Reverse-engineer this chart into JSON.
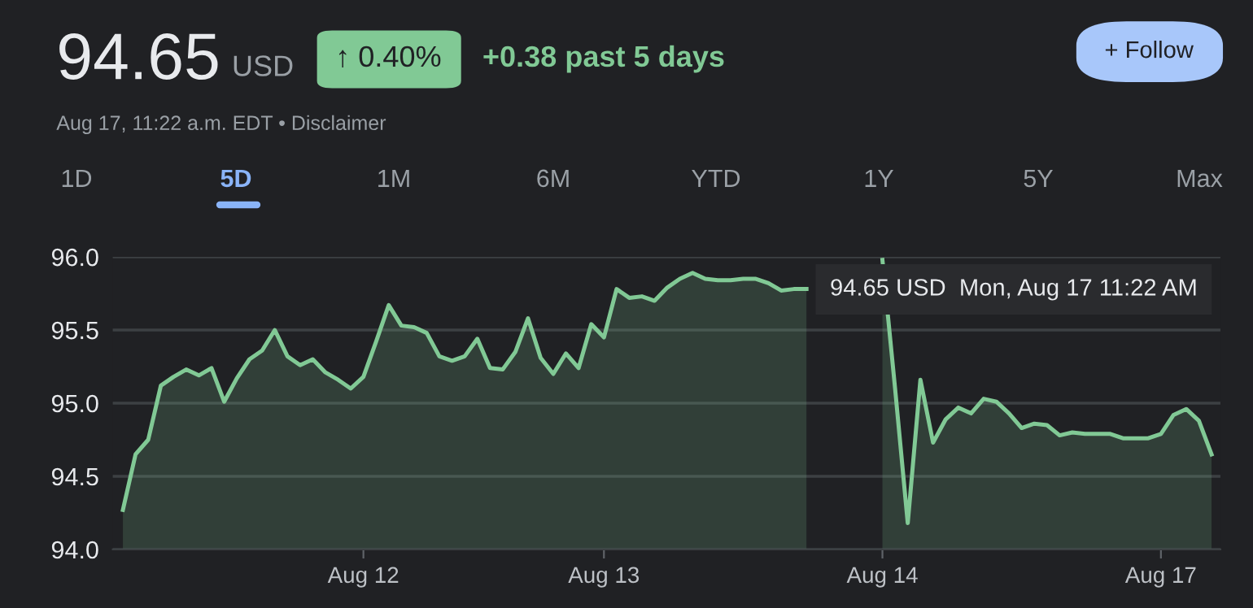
{
  "chart_data": {
    "type": "area",
    "title": "94.65",
    "annotations": [
      "USD",
      "↑ 0.40%",
      "+0.38 past 5 days",
      "+ Follow",
      "Aug 17, 11:22 a.m. EDT • Disclaimer",
      "1D",
      "5D",
      "1M",
      "6M",
      "YTD",
      "1Y",
      "5Y",
      "Max",
      "94.65 USD  Mon, Aug 17 11:22 AM"
    ],
    "categories": [
      null,
      null,
      null,
      null,
      null,
      null,
      null,
      null,
      null,
      null,
      null,
      null,
      null,
      null,
      null,
      null,
      null,
      null,
      null,
      "Aug 12",
      null,
      null,
      null,
      null,
      null,
      null,
      null,
      null,
      null,
      null,
      null,
      null,
      null,
      null,
      null,
      null,
      null,
      null,
      "Aug 13",
      null,
      null,
      null,
      null,
      null,
      null,
      null,
      null,
      null,
      null,
      null,
      null,
      null,
      null,
      null,
      null,
      null,
      null,
      null,
      null,
      null,
      "Aug 14",
      null,
      null,
      null,
      null,
      null,
      null,
      null,
      null,
      null,
      null,
      null,
      null,
      null,
      null,
      null,
      null,
      null,
      null,
      null,
      null,
      null,
      "Aug 17",
      null,
      null,
      null,
      null
    ],
    "series": [
      {
        "color": "#81c995",
        "values": [
          94.27,
          94.65,
          94.75,
          95.12,
          95.18,
          95.23,
          95.19,
          95.24,
          95.01,
          95.17,
          95.3,
          95.36,
          95.5,
          95.32,
          95.26,
          95.3,
          95.21,
          95.16,
          95.1,
          95.18,
          95.42,
          95.67,
          95.53,
          95.52,
          95.48,
          95.32,
          95.29,
          95.32,
          95.44,
          95.24,
          95.23,
          95.35,
          95.58,
          95.31,
          95.2,
          95.34,
          95.24,
          95.54,
          95.45,
          95.78,
          95.72,
          95.73,
          95.7,
          95.79,
          95.85,
          95.89,
          95.85,
          95.84,
          95.84,
          95.85,
          95.85,
          95.82,
          95.77,
          95.78,
          95.78,
          null,
          null,
          null,
          null,
          null,
          95.98,
          95.1,
          94.18,
          95.16,
          94.73,
          94.89,
          94.97,
          94.93,
          95.03,
          95.01,
          94.93,
          94.83,
          94.86,
          94.85,
          94.78,
          94.8,
          94.79,
          94.79,
          94.79,
          94.76,
          94.76,
          94.76,
          94.79,
          94.92,
          94.96,
          94.88,
          94.65
        ]
      }
    ],
    "ylim": [
      94.0,
      96.0
    ],
    "yticks": [
      {
        "value": 94,
        "label": "94.0"
      },
      94.5,
      {
        "value": 95,
        "label": "95.0"
      },
      95.5,
      {
        "value": 96,
        "label": "96.0"
      }
    ],
    "grid": "y"
  }
}
